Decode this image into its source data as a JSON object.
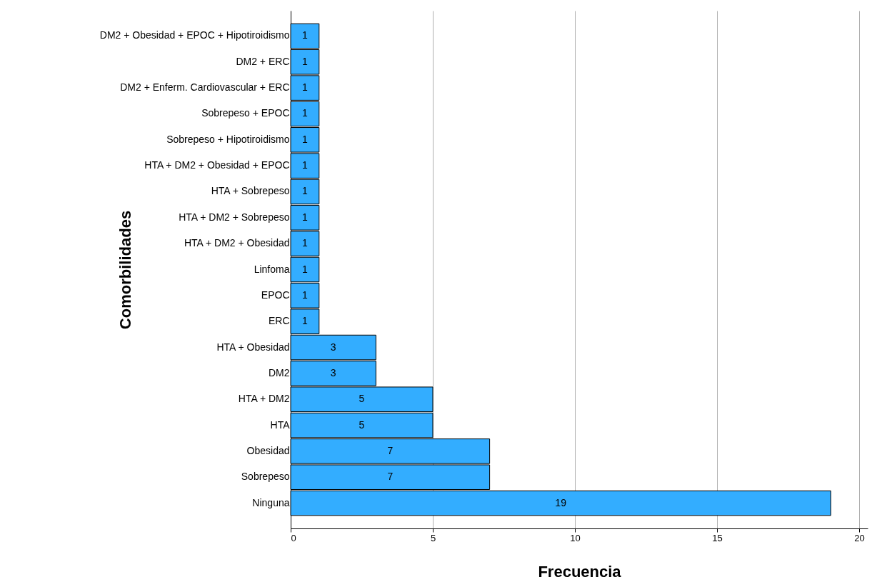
{
  "chart_data": {
    "type": "bar",
    "orientation": "horizontal",
    "xlabel": "Frecuencia",
    "ylabel": "Comorbilidades",
    "categories": [
      "DM2 + Obesidad + EPOC + Hipotiroidismo",
      "DM2 + ERC",
      "DM2 + Enferm. Cardiovascular + ERC",
      "Sobrepeso + EPOC",
      "Sobrepeso + Hipotiroidismo",
      "HTA + DM2 + Obesidad + EPOC",
      "HTA + Sobrepeso",
      "HTA + DM2 + Sobrepeso",
      "HTA + DM2 + Obesidad",
      "Linfoma",
      "EPOC",
      "ERC",
      "HTA + Obesidad",
      "DM2",
      "HTA + DM2",
      "HTA",
      "Obesidad",
      "Sobrepeso",
      "Ninguna"
    ],
    "values": [
      1,
      1,
      1,
      1,
      1,
      1,
      1,
      1,
      1,
      1,
      1,
      1,
      3,
      3,
      5,
      5,
      7,
      7,
      19
    ],
    "color": "#33adff",
    "xlim": [
      0,
      20.3
    ],
    "xticks": [
      0,
      5,
      10,
      15,
      20
    ],
    "grid": "x",
    "data_labels": true
  }
}
